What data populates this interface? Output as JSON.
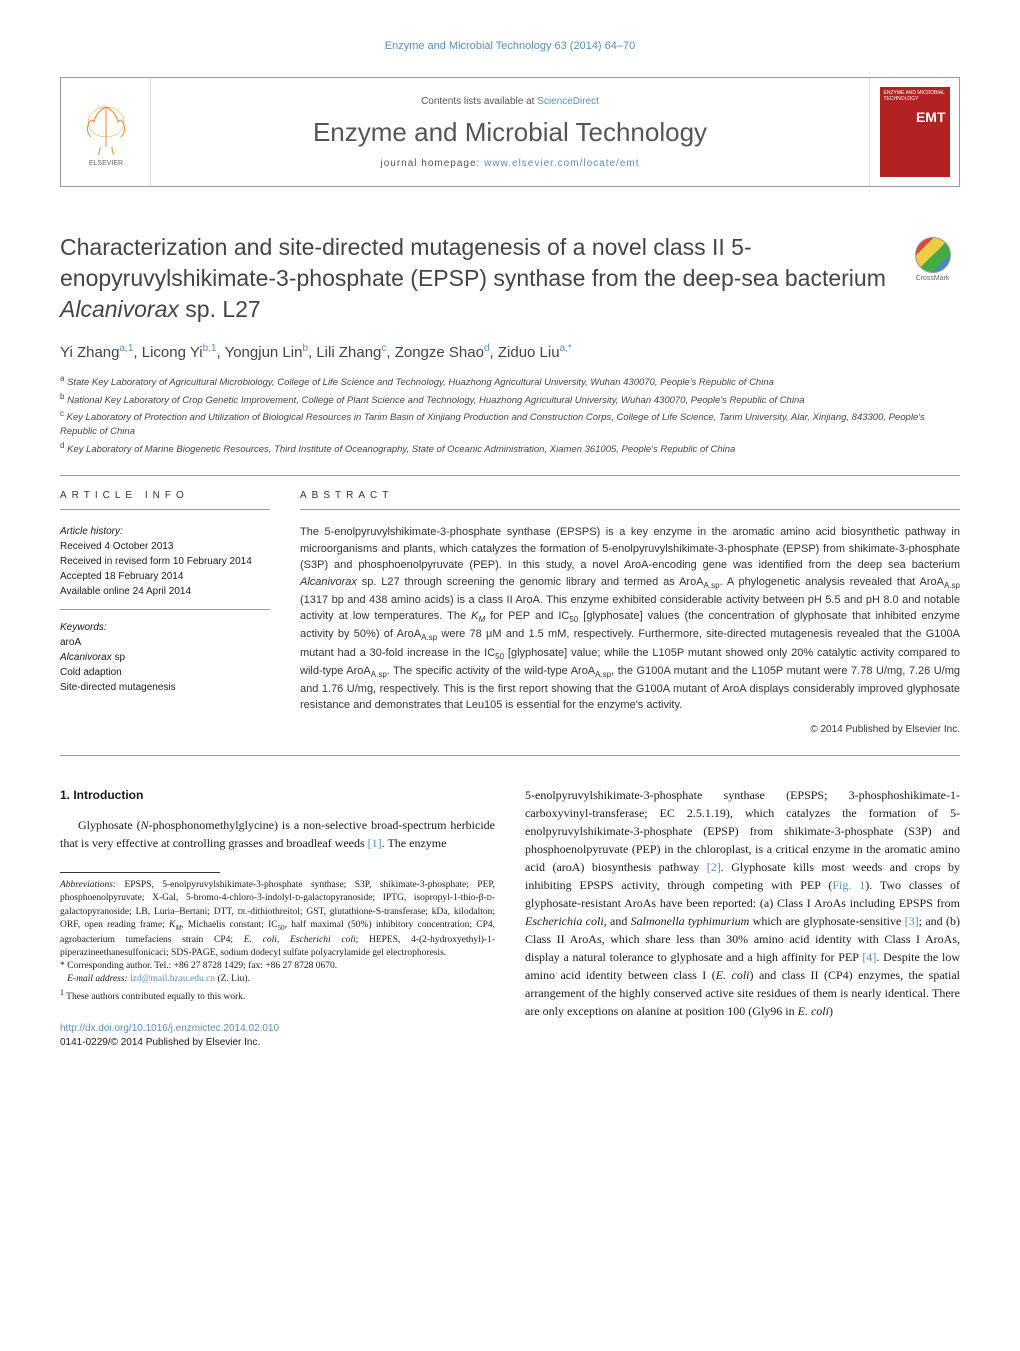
{
  "running_head": "Enzyme and Microbial Technology 63 (2014) 64–70",
  "masthead": {
    "contents_prefix": "Contents lists available at ",
    "contents_link": "ScienceDirect",
    "journal_name": "Enzyme and Microbial Technology",
    "homepage_prefix": "journal homepage: ",
    "homepage_link": "www.elsevier.com/locate/emt",
    "cover_lines": "ENZYME AND MICROBIAL TECHNOLOGY",
    "cover_emt": "EMT"
  },
  "crossmark_label": "CrossMark",
  "title_pre": "Characterization and site-directed mutagenesis of a novel class II 5-enopyruvylshikimate-3-phosphate (EPSP) synthase from the deep-sea bacterium ",
  "title_italic": "Alcanivorax",
  "title_post": " sp. L27",
  "authors_html": "Yi Zhang<sup>a,1</sup>, Licong Yi<sup>b,1</sup>, Yongjun Lin<sup>b</sup>, Lili Zhang<sup>c</sup>, Zongze Shao<sup>d</sup>, Ziduo Liu<sup>a,*</sup>",
  "affiliations": [
    "<sup>a</sup> State Key Laboratory of Agricultural Microbiology, College of Life Science and Technology, Huazhong Agricultural University, Wuhan 430070, People's Republic of China",
    "<sup>b</sup> National Key Laboratory of Crop Genetic Improvement, College of Plant Science and Technology, Huazhong Agricultural University, Wuhan 430070, People's Republic of China",
    "<sup>c</sup> Key Laboratory of Protection and Utilization of Biological Resources in Tarim Basin of Xinjiang Production and Construction Corps, College of Life Science, Tarim University, Alar, Xinjiang, 843300, People's Republic of China",
    "<sup>d</sup> Key Laboratory of Marine Biogenetic Resources, Third Institute of Oceanography, State of Oceanic Administration, Xiamen 361005, People's Republic of China"
  ],
  "article_info_head": "ARTICLE INFO",
  "history_label": "Article history:",
  "history_lines": [
    "Received 4 October 2013",
    "Received in revised form 10 February 2014",
    "Accepted 18 February 2014",
    "Available online 24 April 2014"
  ],
  "keywords_label": "Keywords:",
  "keywords": [
    "aroA",
    "<span class=\"italic\">Alcanivorax</span> sp",
    "Cold adaption",
    "Site-directed mutagenesis"
  ],
  "abstract_head": "ABSTRACT",
  "abstract_html": "The 5-enolpyruvylshikimate-3-phosphate synthase (EPSPS) is a key enzyme in the aromatic amino acid biosynthetic pathway in microorganisms and plants, which catalyzes the formation of 5-enolpyruvylshikimate-3-phosphate (EPSP) from shikimate-3-phosphate (S3P) and phosphoenolpyruvate (PEP). In this study, a novel AroA-encoding gene was identified from the deep sea bacterium <span class=\"italic\">Alcanivorax</span> sp. L27 through screening the genomic library and termed as AroA<sub>A.sp</sub>. A phylogenetic analysis revealed that AroA<sub>A.sp</sub> (1317 bp and 438 amino acids) is a class II AroA. This enzyme exhibited considerable activity between pH 5.5 and pH 8.0 and notable activity at low temperatures. The <span class=\"italic\">K<sub>M</sub></span> for PEP and IC<sub>50</sub> [glyphosate] values (the concentration of glyphosate that inhibited enzyme activity by 50%) of AroA<sub>A.sp</sub> were 78 μM and 1.5 mM, respectively. Furthermore, site-directed mutagenesis revealed that the G100A mutant had a 30-fold increase in the IC<sub>50</sub> [glyphosate] value; while the L105P mutant showed only 20% catalytic activity compared to wild-type AroA<sub>A.sp</sub>. The specific activity of the wild-type AroA<sub>A.sp</sub>, the G100A mutant and the L105P mutant were 7.78 U/mg, 7.26 U/mg and 1.76 U/mg, respectively. This is the first report showing that the G100A mutant of AroA displays considerably improved glyphosate resistance and demonstrates that Leu105 is essential for the enzyme's activity.",
  "copyright": "© 2014 Published by Elsevier Inc.",
  "intro_head": "1. Introduction",
  "intro_col1_html": "Glyphosate (<span class=\"italic\">N</span>-phosphonomethylglycine) is a non-selective broad-spectrum herbicide that is very effective at controlling grasses and broadleaf weeds <a class=\"ref\" href=\"#\">[1]</a>. The enzyme",
  "intro_col2_html": "5-enolpyruvylshikimate-3-phosphate synthase (EPSPS; 3-phosphoshikimate-1-carboxyvinyl-transferase; EC 2.5.1.19), which catalyzes the formation of 5-enolpyruvylshikimate-3-phosphate (EPSP) from shikimate-3-phosphate (S3P) and phosphoenolpyruvate (PEP) in the chloroplast, is a critical enzyme in the aromatic amino acid (aroA) biosynthesis pathway <a class=\"ref\" href=\"#\">[2]</a>. Glyphosate kills most weeds and crops by inhibiting EPSPS activity, through competing with PEP (<a class=\"ref\" href=\"#\">Fig. 1</a>). Two classes of glyphosate-resistant AroAs have been reported: (a) Class I AroAs including EPSPS from <span class=\"italic\">Escherichia coli</span>, and <span class=\"italic\">Salmonella typhimurium</span> which are glyphosate-sensitive <a class=\"ref\" href=\"#\">[3]</a>; and (b) Class II AroAs, which share less than 30% amino acid identity with Class I AroAs, display a natural tolerance to glyphosate and a high affinity for PEP <a class=\"ref\" href=\"#\">[4]</a>. Despite the low amino acid identity between class I (<span class=\"italic\">E. coli</span>) and class II (CP4) enzymes, the spatial arrangement of the highly conserved active site residues of them is nearly identical. There are only exceptions on alanine at position 100 (Gly96 in <span class=\"italic\">E. coli</span>)",
  "abbrev_html": "<span class=\"italic\">Abbreviations:</span> EPSPS, 5-enolpyruvylshikimate-3-phosphate synthase; S3P, shikimate-3-phosphate; PEP, phosphoenolpyruvate; X-Gal, 5-bromo-4-chloro-3-indolyl-<span style=\"font-variant:small-caps\">d</span>-galactopyranoside; IPTG, isopropyl-1-thio-β-<span style=\"font-variant:small-caps\">d</span>-galactopyranoside; LB, Luria–Bertani; DTT, <span style=\"font-variant:small-caps\">dl</span>-dithiothreitol; GST, glutathione-S-transferase; kDa, kilodalton; ORF, open reading frame; <span class=\"italic\">K<sub>M</sub></span>, Michaelis constant; IC<sub>50</sub>, half maximal (50%) inhibitory concentration; CP4, agrobacterium tumefaciens strain CP4; <span class=\"italic\">E. coli, Escherichi coli</span>; HEPES, 4-(2-hydroxyethyl)-1-piperazineethanesulfonicaci; SDS-PAGE, sodium dodecyl sulfate polyacrylamide gel electrophoresis.",
  "corresp_html": "* Corresponding author. Tel.: +86 27 8728 1429; fax: +86 27 8728 0670.",
  "email_label": "E-mail address: ",
  "email_value": "lzd@mail.hzau.edu.cn",
  "email_suffix": " (Z. Liu).",
  "contrib_note": "<sup>1</sup> These authors contributed equally to this work.",
  "doi_link": "http://dx.doi.org/10.1016/j.enzmictec.2014.02.010",
  "issn_line": "0141-0229/© 2014 Published by Elsevier Inc.",
  "colors": {
    "link": "#5a8cb8",
    "cover_bg": "#b22222",
    "text": "#1a1a1a",
    "heading": "#444444",
    "rule": "#999999"
  }
}
